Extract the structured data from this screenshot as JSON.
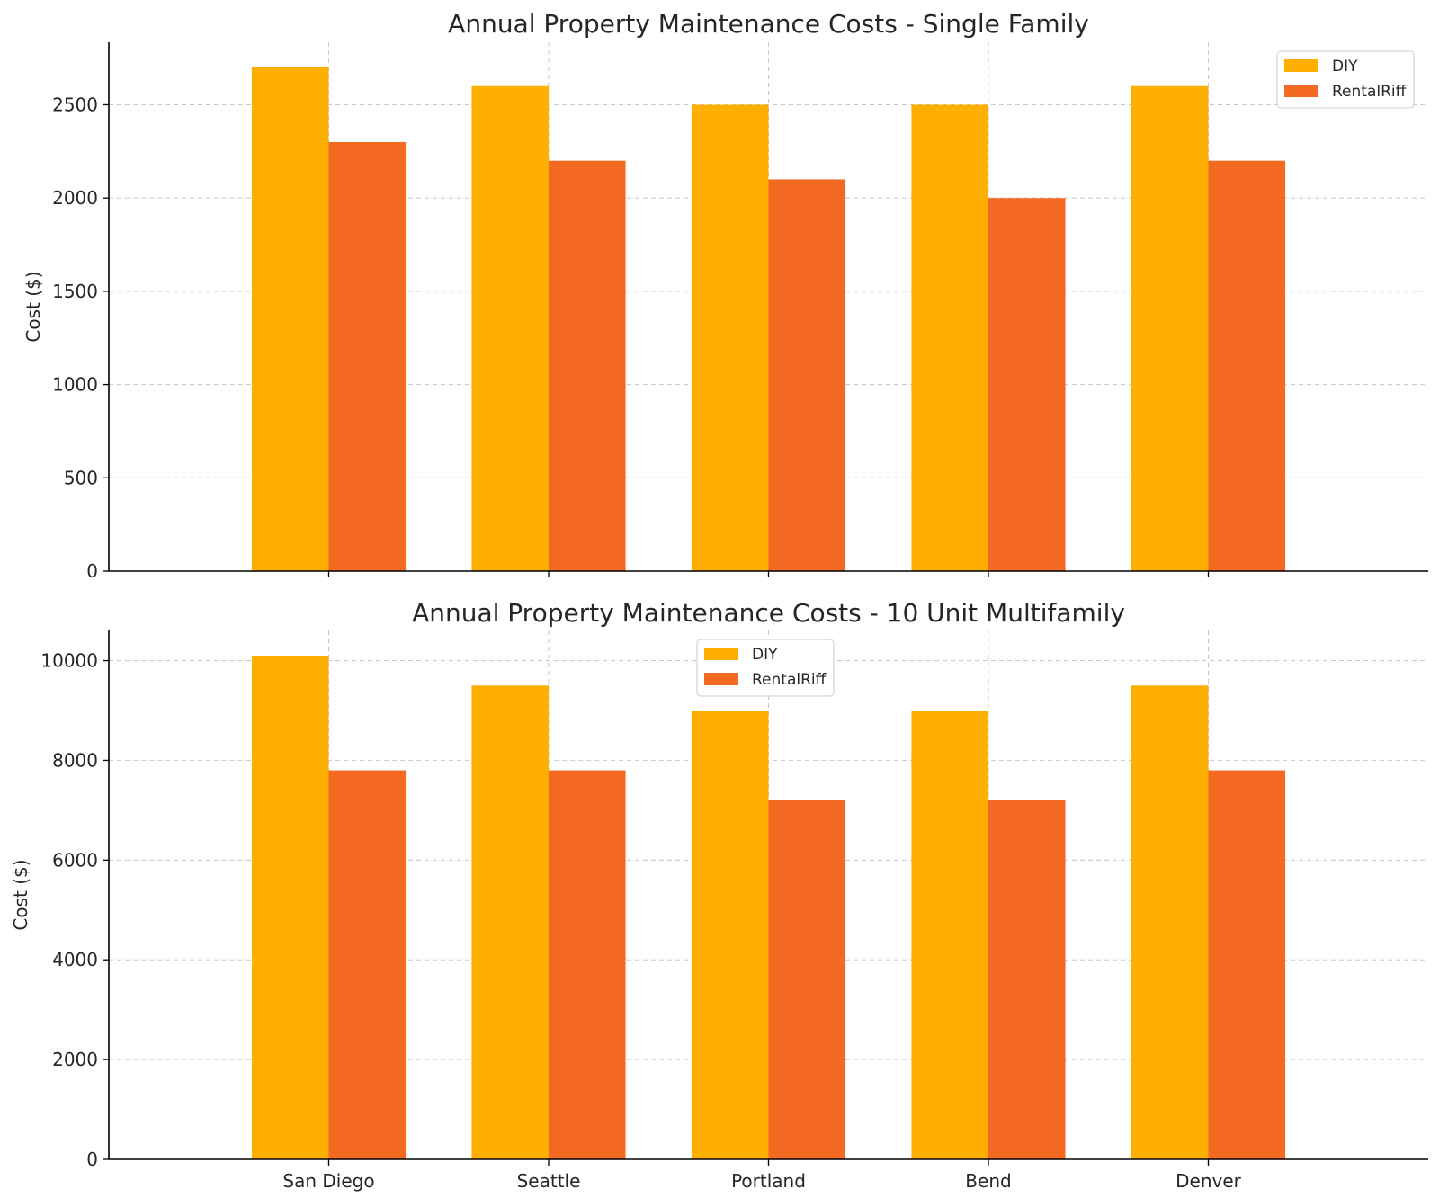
{
  "colors": {
    "diy": "#FFAF00",
    "rentalriff": "#F46A22"
  },
  "chart_data": [
    {
      "type": "bar",
      "title": "Annual Property Maintenance Costs - Single Family",
      "ylabel": "Cost ($)",
      "xlabel": "",
      "categories": [
        "San Diego",
        "Seattle",
        "Portland",
        "Bend",
        "Denver"
      ],
      "show_x_tick_labels": false,
      "series": [
        {
          "name": "DIY",
          "values": [
            2700,
            2600,
            2500,
            2500,
            2600
          ]
        },
        {
          "name": "RentalRiff",
          "values": [
            2300,
            2200,
            2100,
            2000,
            2200
          ]
        }
      ],
      "ylim": [
        0,
        2835
      ],
      "yticks": [
        0,
        500,
        1000,
        1500,
        2000,
        2500
      ],
      "grid": true,
      "legend": "top-right"
    },
    {
      "type": "bar",
      "title": "Annual Property Maintenance Costs - 10 Unit Multifamily",
      "ylabel": "Cost ($)",
      "xlabel": "",
      "categories": [
        "San Diego",
        "Seattle",
        "Portland",
        "Bend",
        "Denver"
      ],
      "show_x_tick_labels": true,
      "series": [
        {
          "name": "DIY",
          "values": [
            10100,
            9500,
            9000,
            9000,
            9500
          ]
        },
        {
          "name": "RentalRiff",
          "values": [
            7800,
            7800,
            7200,
            7200,
            7800
          ]
        }
      ],
      "ylim": [
        0,
        10605
      ],
      "yticks": [
        0,
        2000,
        4000,
        6000,
        8000,
        10000
      ],
      "grid": true,
      "legend": "top-center"
    }
  ]
}
